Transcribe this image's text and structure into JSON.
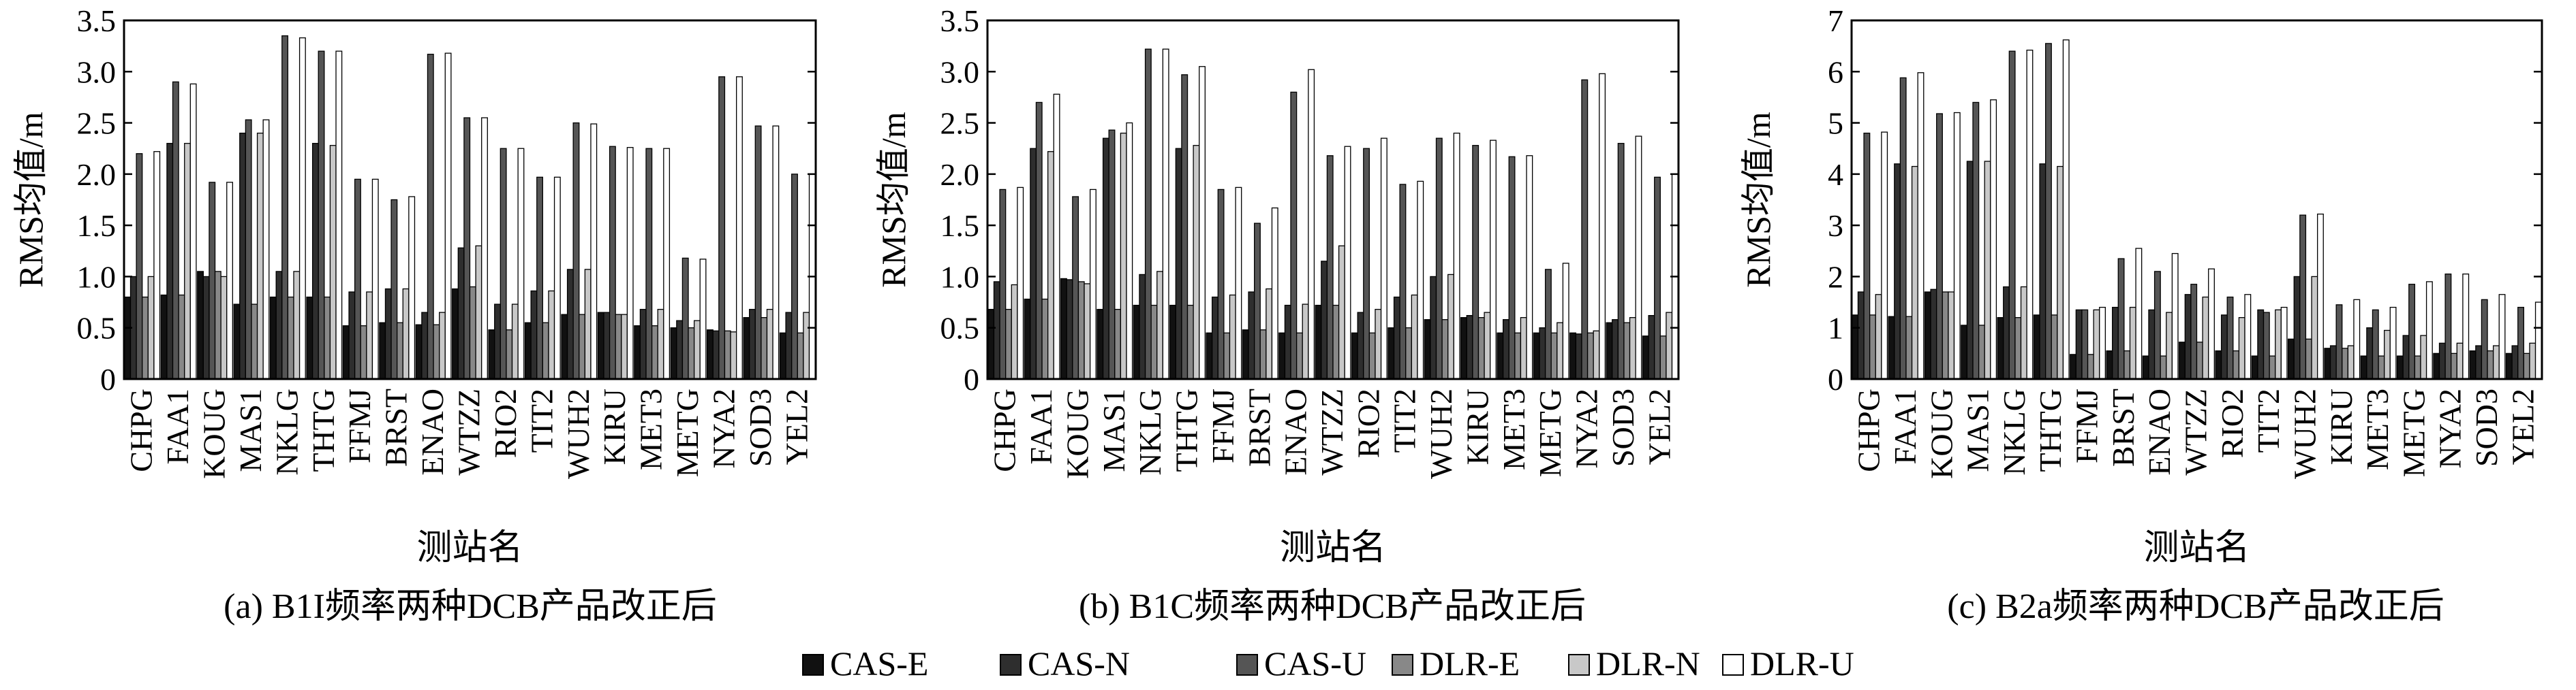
{
  "chart_data": [
    {
      "type": "bar",
      "caption": "(a) B1I频率两种DCB产品改正后",
      "xlabel": "测站名",
      "ylabel": "RMS均值/m",
      "ylim": [
        0,
        3.5
      ],
      "yticks": [
        "0",
        "0.5",
        "1.0",
        "1.5",
        "2.0",
        "2.5",
        "3.0",
        "3.5"
      ],
      "categories": [
        "CHPG",
        "FAA1",
        "KOUG",
        "MAS1",
        "NKLG",
        "THTG",
        "FFMJ",
        "BRST",
        "ENAO",
        "WTZZ",
        "RIO2",
        "TIT2",
        "WUH2",
        "KIRU",
        "MET3",
        "METG",
        "NYA2",
        "SOD3",
        "YEL2"
      ],
      "series": [
        {
          "name": "CAS-E",
          "values": [
            0.8,
            0.82,
            1.05,
            0.73,
            0.8,
            0.8,
            0.52,
            0.55,
            0.53,
            0.88,
            0.48,
            0.55,
            0.63,
            0.65,
            0.52,
            0.5,
            0.48,
            0.6,
            0.45
          ]
        },
        {
          "name": "CAS-N",
          "values": [
            1.0,
            2.3,
            1.0,
            2.4,
            1.05,
            2.3,
            0.85,
            0.88,
            0.65,
            1.28,
            0.73,
            0.86,
            1.07,
            0.65,
            0.68,
            0.57,
            0.47,
            0.68,
            0.65
          ]
        },
        {
          "name": "CAS-U",
          "values": [
            2.2,
            2.9,
            1.92,
            2.53,
            3.35,
            3.2,
            1.95,
            1.75,
            3.17,
            2.55,
            2.25,
            1.97,
            2.5,
            2.27,
            2.25,
            1.18,
            2.95,
            2.47,
            2.0
          ]
        },
        {
          "name": "DLR-E",
          "values": [
            0.8,
            0.82,
            1.05,
            0.73,
            0.8,
            0.8,
            0.52,
            0.55,
            0.53,
            0.9,
            0.48,
            0.55,
            0.63,
            0.63,
            0.52,
            0.5,
            0.47,
            0.6,
            0.45
          ]
        },
        {
          "name": "DLR-N",
          "values": [
            1.0,
            2.3,
            1.0,
            2.4,
            1.05,
            2.28,
            0.85,
            0.88,
            0.65,
            1.3,
            0.73,
            0.86,
            1.07,
            0.63,
            0.68,
            0.57,
            0.46,
            0.68,
            0.65
          ]
        },
        {
          "name": "DLR-U",
          "values": [
            2.22,
            2.88,
            1.92,
            2.53,
            3.33,
            3.2,
            1.95,
            1.78,
            3.18,
            2.55,
            2.25,
            1.97,
            2.49,
            2.26,
            2.25,
            1.17,
            2.95,
            2.47,
            2.0
          ]
        }
      ]
    },
    {
      "type": "bar",
      "caption": "(b) B1C频率两种DCB产品改正后",
      "xlabel": "测站名",
      "ylabel": "RMS均值/m",
      "ylim": [
        0,
        3.5
      ],
      "yticks": [
        "0",
        "0.5",
        "1.0",
        "1.5",
        "2.0",
        "2.5",
        "3.0",
        "3.5"
      ],
      "categories": [
        "CHPG",
        "FAA1",
        "KOUG",
        "MAS1",
        "NKLG",
        "THTG",
        "FFMJ",
        "BRST",
        "ENAO",
        "WTZZ",
        "RIO2",
        "TIT2",
        "WUH2",
        "KIRU",
        "MET3",
        "METG",
        "NYA2",
        "SOD3",
        "YEL2"
      ],
      "series": [
        {
          "name": "CAS-E",
          "values": [
            0.68,
            0.78,
            0.98,
            0.68,
            0.72,
            0.72,
            0.45,
            0.48,
            0.45,
            0.72,
            0.45,
            0.5,
            0.58,
            0.6,
            0.45,
            0.45,
            0.45,
            0.55,
            0.42
          ]
        },
        {
          "name": "CAS-N",
          "values": [
            0.95,
            2.25,
            0.97,
            2.35,
            1.02,
            2.25,
            0.8,
            0.85,
            0.72,
            1.15,
            0.65,
            0.8,
            1.0,
            0.62,
            0.58,
            0.5,
            0.44,
            0.58,
            0.62
          ]
        },
        {
          "name": "CAS-U",
          "values": [
            1.85,
            2.7,
            1.78,
            2.43,
            3.22,
            2.97,
            1.85,
            1.52,
            2.8,
            2.18,
            2.25,
            1.9,
            2.35,
            2.28,
            2.17,
            1.07,
            2.92,
            2.3,
            1.97
          ]
        },
        {
          "name": "DLR-E",
          "values": [
            0.68,
            0.78,
            0.95,
            0.68,
            0.72,
            0.72,
            0.45,
            0.48,
            0.45,
            0.72,
            0.45,
            0.5,
            0.58,
            0.6,
            0.45,
            0.45,
            0.45,
            0.55,
            0.42
          ]
        },
        {
          "name": "DLR-N",
          "values": [
            0.92,
            2.22,
            0.93,
            2.4,
            1.05,
            2.28,
            0.82,
            0.88,
            0.73,
            1.3,
            0.68,
            0.82,
            1.02,
            0.65,
            0.6,
            0.55,
            0.47,
            0.6,
            0.65
          ]
        },
        {
          "name": "DLR-U",
          "values": [
            1.87,
            2.78,
            1.85,
            2.5,
            3.22,
            3.05,
            1.87,
            1.67,
            3.02,
            2.27,
            2.35,
            1.93,
            2.4,
            2.33,
            2.18,
            1.13,
            2.98,
            2.37,
            2.0
          ]
        }
      ]
    },
    {
      "type": "bar",
      "caption": "(c) B2a频率两种DCB产品改正后",
      "xlabel": "测站名",
      "ylabel": "RMS均值/m",
      "ylim": [
        0,
        7
      ],
      "yticks": [
        "0",
        "1",
        "2",
        "3",
        "4",
        "5",
        "6",
        "7"
      ],
      "categories": [
        "CHPG",
        "FAA1",
        "KOUG",
        "MAS1",
        "NKLG",
        "THTG",
        "FFMJ",
        "BRST",
        "ENAO",
        "WTZZ",
        "RIO2",
        "TIT2",
        "WUH2",
        "KIRU",
        "MET3",
        "METG",
        "NYA2",
        "SOD3",
        "YEL2"
      ],
      "series": [
        {
          "name": "CAS-E",
          "values": [
            1.25,
            1.22,
            1.7,
            1.05,
            1.2,
            1.25,
            0.48,
            0.55,
            0.45,
            0.72,
            0.55,
            0.45,
            0.78,
            0.6,
            0.45,
            0.45,
            0.5,
            0.55,
            0.5
          ]
        },
        {
          "name": "CAS-N",
          "values": [
            1.7,
            4.2,
            1.75,
            4.25,
            1.8,
            4.2,
            1.35,
            1.4,
            1.35,
            1.65,
            1.25,
            1.35,
            2.0,
            0.65,
            1.0,
            0.85,
            0.7,
            0.65,
            0.65
          ]
        },
        {
          "name": "CAS-U",
          "values": [
            4.8,
            5.88,
            5.18,
            5.4,
            6.4,
            6.55,
            1.35,
            2.35,
            2.1,
            1.85,
            1.6,
            1.3,
            3.2,
            1.45,
            1.35,
            1.85,
            2.05,
            1.55,
            1.4
          ]
        },
        {
          "name": "DLR-E",
          "values": [
            1.25,
            1.22,
            1.7,
            1.05,
            1.2,
            1.25,
            0.48,
            0.55,
            0.45,
            0.72,
            0.55,
            0.45,
            0.78,
            0.6,
            0.45,
            0.45,
            0.5,
            0.55,
            0.5
          ]
        },
        {
          "name": "DLR-N",
          "values": [
            1.65,
            4.15,
            1.7,
            4.25,
            1.8,
            4.15,
            1.35,
            1.4,
            1.3,
            1.6,
            1.2,
            1.35,
            2.0,
            0.65,
            0.95,
            0.85,
            0.7,
            0.65,
            0.7
          ]
        },
        {
          "name": "DLR-U",
          "values": [
            4.82,
            5.98,
            5.2,
            5.45,
            6.42,
            6.62,
            1.4,
            2.55,
            2.45,
            2.15,
            1.65,
            1.4,
            3.22,
            1.55,
            1.4,
            1.9,
            2.05,
            1.65,
            1.5
          ]
        }
      ]
    }
  ],
  "legend": {
    "items": [
      {
        "name": "CAS-E",
        "color": "#111111"
      },
      {
        "name": "CAS-N",
        "color": "#2e2e2e"
      },
      {
        "name": "CAS-U",
        "color": "#555555"
      },
      {
        "name": "DLR-E",
        "color": "#888888"
      },
      {
        "name": "DLR-N",
        "color": "#c8c8c8"
      },
      {
        "name": "DLR-U",
        "color": "#ffffff"
      }
    ]
  }
}
